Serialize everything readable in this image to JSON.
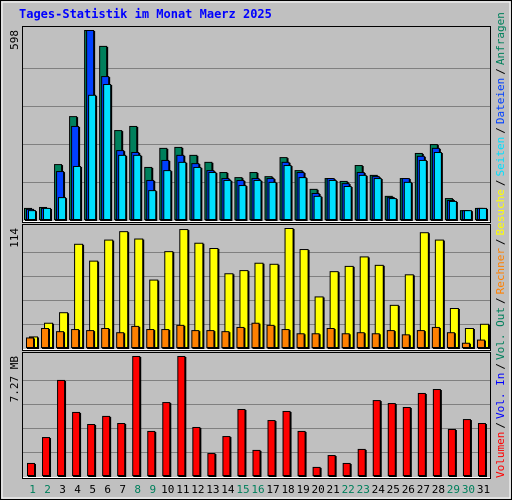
{
  "chart_data": {
    "type": "bar",
    "title": "Tages-Statistik im Monat Maerz 2025",
    "categories": [
      "1",
      "2",
      "3",
      "4",
      "5",
      "6",
      "7",
      "8",
      "9",
      "10",
      "11",
      "12",
      "13",
      "14",
      "15",
      "16",
      "17",
      "18",
      "19",
      "20",
      "21",
      "22",
      "23",
      "24",
      "25",
      "26",
      "27",
      "28",
      "29",
      "30",
      "31"
    ],
    "category_colors": [
      "#00805c",
      "#00805c",
      "#000000",
      "#000000",
      "#000000",
      "#000000",
      "#000000",
      "#00805c",
      "#00805c",
      "#000000",
      "#000000",
      "#000000",
      "#000000",
      "#000000",
      "#00805c",
      "#00805c",
      "#000000",
      "#000000",
      "#000000",
      "#000000",
      "#000000",
      "#00805c",
      "#00805c",
      "#000000",
      "#000000",
      "#000000",
      "#000000",
      "#000000",
      "#00805c",
      "#00805c",
      "#000000"
    ],
    "legend_separator": "/",
    "legend": [
      {
        "name": "Volumen",
        "color": "#ff0000"
      },
      {
        "name": "Vol. In",
        "color": "#0000ff"
      },
      {
        "name": "Vol. Out",
        "color": "#00805c"
      },
      {
        "name": "Rechner",
        "color": "#ff8000"
      },
      {
        "name": "Besuche",
        "color": "#ffff00"
      },
      {
        "name": "Seiten",
        "color": "#00e0ff"
      },
      {
        "name": "Dateien",
        "color": "#0040ff"
      },
      {
        "name": "Anfragen",
        "color": "#00805c"
      }
    ],
    "panels": [
      {
        "ylim": [
          0,
          598
        ],
        "yticks": [
          598
        ],
        "series": [
          {
            "color": "#00805c",
            "values": [
              38,
              41,
              176,
              327,
              598,
              548,
              283,
              296,
              167,
              227,
              230,
              205,
              183,
              151,
              135,
              151,
              138,
              198,
              157,
              98,
              132,
              123,
              173,
              142,
              76,
              132,
              211,
              239,
              69,
              31,
              38
            ]
          },
          {
            "color": "#0040ff",
            "values": [
              35,
              38,
              154,
              296,
              598,
              453,
              220,
              214,
              126,
              189,
              205,
              179,
              157,
              132,
              126,
              132,
              132,
              183,
              151,
              85,
              132,
              116,
              151,
              138,
              72,
              132,
              202,
              227,
              63,
              31,
              38
            ]
          },
          {
            "color": "#00e0ff",
            "values": [
              31,
              38,
              72,
              170,
              394,
              428,
              205,
              205,
              94,
              157,
              183,
              167,
              151,
              126,
              110,
              126,
              120,
              173,
              135,
              76,
              126,
              107,
              142,
              132,
              69,
              120,
              189,
              214,
              60,
              31,
              38
            ]
          }
        ]
      },
      {
        "ylim": [
          0,
          114
        ],
        "yticks": [
          114
        ],
        "series": [
          {
            "color": "#ffff00",
            "values": [
              11,
              24,
              34,
              99,
              83,
              103,
              111,
              104,
              65,
              92,
              113,
              100,
              95,
              71,
              74,
              81,
              80,
              114,
              94,
              49,
              73,
              78,
              87,
              79,
              41,
              70,
              110,
              103,
              38,
              19,
              23
            ]
          },
          {
            "color": "#ff8000",
            "values": [
              10,
              19,
              16,
              18,
              17,
              19,
              15,
              21,
              18,
              18,
              22,
              17,
              17,
              16,
              20,
              24,
              22,
              18,
              14,
              14,
              19,
              14,
              15,
              14,
              17,
              13,
              17,
              20,
              15,
              5,
              8
            ]
          }
        ]
      },
      {
        "ylim": [
          0,
          7.27
        ],
        "yticks": [
          {
            "value": 7.27,
            "label": "7.27 MB"
          }
        ],
        "series": [
          {
            "color": "#ff0000",
            "values": [
              0.79,
              2.36,
              5.82,
              3.88,
              3.15,
              3.64,
              3.21,
              7.27,
              2.73,
              4.48,
              7.27,
              2.97,
              1.39,
              2.42,
              4.06,
              1.58,
              3.39,
              3.94,
              2.73,
              0.55,
              1.27,
              0.79,
              1.64,
              4.6,
              4.42,
              4.18,
              5.03,
              5.27,
              2.85,
              3.45,
              3.21
            ]
          }
        ]
      }
    ]
  }
}
